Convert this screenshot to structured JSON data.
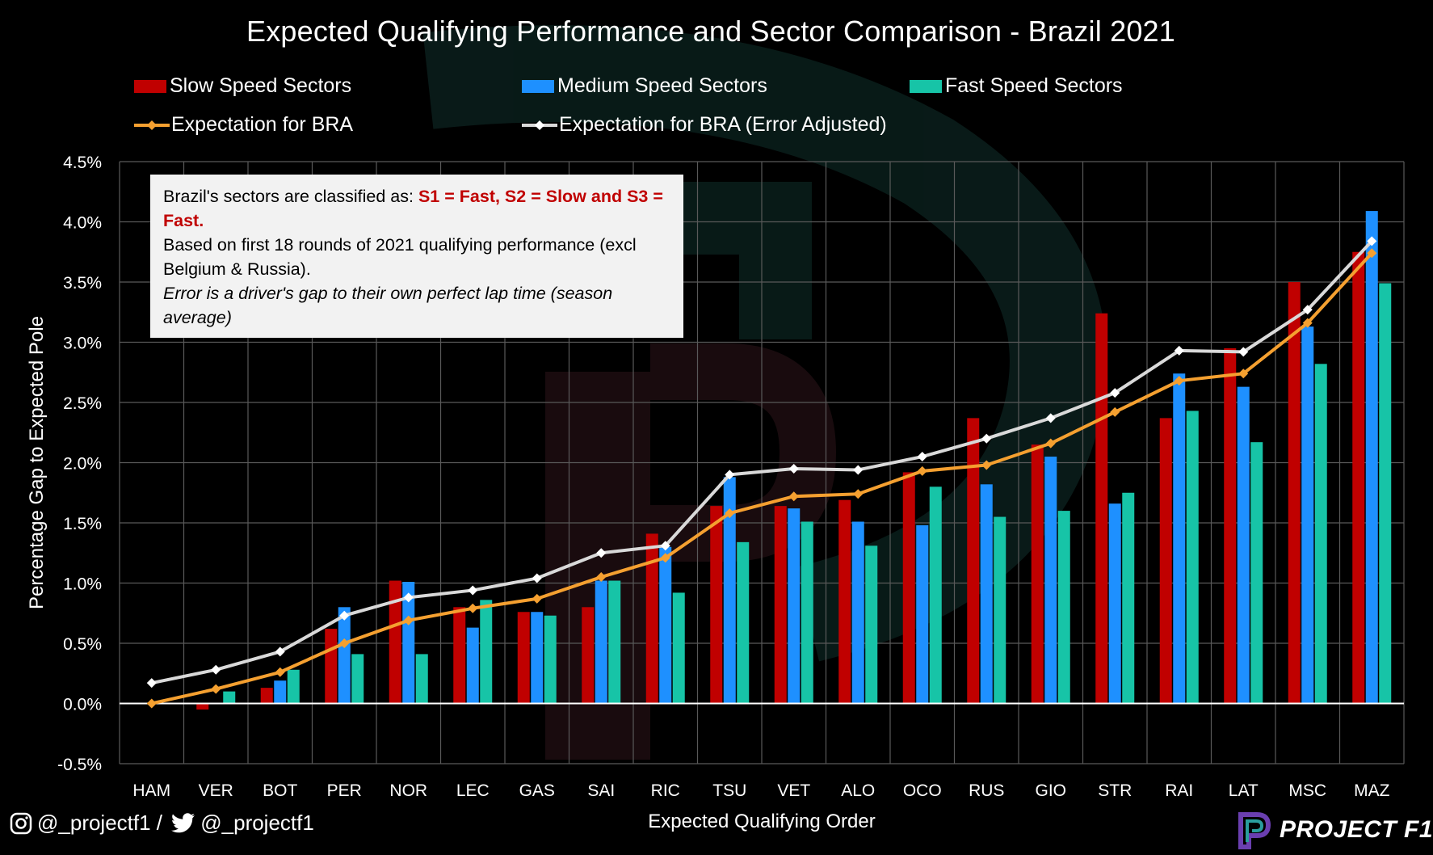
{
  "chart_data": {
    "type": "bar",
    "title": "Expected Qualifying Performance and Sector Comparison - Brazil 2021",
    "xlabel": "Expected Qualifying Order",
    "ylabel": "Percentage Gap to Expected Pole",
    "ylim": [
      -0.5,
      4.5
    ],
    "yticks": [
      -0.5,
      0.0,
      0.5,
      1.0,
      1.5,
      2.0,
      2.5,
      3.0,
      3.5,
      4.0,
      4.5
    ],
    "ytick_labels": [
      "-0.5%",
      "0.0%",
      "0.5%",
      "1.0%",
      "1.5%",
      "2.0%",
      "2.5%",
      "3.0%",
      "3.5%",
      "4.0%",
      "4.5%"
    ],
    "grid": true,
    "legend_position": "top",
    "categories": [
      "HAM",
      "VER",
      "BOT",
      "PER",
      "NOR",
      "LEC",
      "GAS",
      "SAI",
      "RIC",
      "TSU",
      "VET",
      "ALO",
      "OCO",
      "RUS",
      "GIO",
      "STR",
      "RAI",
      "LAT",
      "MSC",
      "MAZ"
    ],
    "bar_series": [
      {
        "name": "Slow Speed Sectors",
        "color": "#c00000",
        "values": [
          0.0,
          -0.05,
          0.13,
          0.62,
          1.02,
          0.8,
          0.76,
          0.8,
          1.41,
          1.64,
          1.64,
          1.69,
          1.92,
          2.37,
          2.15,
          3.24,
          2.37,
          2.95,
          3.5,
          3.75
        ]
      },
      {
        "name": "Medium Speed Sectors",
        "color": "#1e90ff",
        "values": [
          0.0,
          0.0,
          0.19,
          0.8,
          1.01,
          0.63,
          0.76,
          1.02,
          1.3,
          1.88,
          1.62,
          1.51,
          1.48,
          1.82,
          2.05,
          1.66,
          2.74,
          2.63,
          3.13,
          4.09
        ]
      },
      {
        "name": "Fast Speed Sectors",
        "color": "#17c4a7",
        "values": [
          0.0,
          0.1,
          0.28,
          0.41,
          0.41,
          0.86,
          0.73,
          1.02,
          0.92,
          1.34,
          1.51,
          1.31,
          1.8,
          1.55,
          1.6,
          1.75,
          2.43,
          2.17,
          2.82,
          3.49
        ]
      }
    ],
    "line_series": [
      {
        "name": "Expectation for BRA",
        "color": "#f5a030",
        "values": [
          0.0,
          0.12,
          0.26,
          0.5,
          0.69,
          0.79,
          0.87,
          1.05,
          1.21,
          1.58,
          1.72,
          1.74,
          1.93,
          1.98,
          2.16,
          2.42,
          2.68,
          2.74,
          3.16,
          3.74
        ]
      },
      {
        "name": "Expectation for BRA (Error Adjusted)",
        "color": "#d9d9d9",
        "values": [
          0.17,
          0.28,
          0.43,
          0.73,
          0.88,
          0.94,
          1.04,
          1.25,
          1.31,
          1.9,
          1.95,
          1.94,
          2.05,
          2.2,
          2.37,
          2.58,
          2.93,
          2.92,
          3.27,
          3.84
        ]
      }
    ]
  },
  "note": {
    "line1_prefix": "Brazil's sectors are classified as: ",
    "line1_highlight": "S1 = Fast, S2 = Slow and S3 = Fast.",
    "line2": "Based on first 18 rounds of 2021 qualifying performance (excl Belgium & Russia).",
    "line3": "Error is a driver's gap to their own perfect lap time (season average)"
  },
  "footer": {
    "instagram_icon": "instagram-icon",
    "instagram_handle": "@_projectf1",
    "separator": " / ",
    "twitter_icon": "twitter-icon",
    "twitter_handle": "@_projectf1",
    "brand": "PROJECT F1"
  }
}
